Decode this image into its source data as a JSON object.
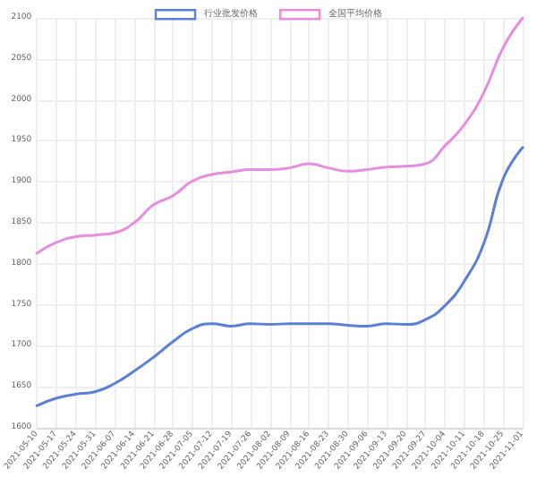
{
  "chart_data": {
    "type": "line",
    "categories": [
      "2021-05-10",
      "2021-05-17",
      "2021-05-24",
      "2021-05-31",
      "2021-06-07",
      "2021-06-14",
      "2021-06-21",
      "2021-06-28",
      "2021-07-05",
      "2021-07-12",
      "2021-07-19",
      "2021-07-26",
      "2021-08-02",
      "2021-08-09",
      "2021-08-16",
      "2021-08-23",
      "2021-08-30",
      "2021-09-06",
      "2021-09-13",
      "2021-09-20",
      "2021-09-27",
      "2021-10-04",
      "2021-10-11",
      "2021-10-18",
      "2021-10-25",
      "2021-11-01"
    ],
    "series": [
      {
        "name": "行业批发价格",
        "color": "#5b7fd6",
        "values": [
          1627,
          1636,
          1641,
          1644,
          1654,
          1669,
          1686,
          1705,
          1721,
          1727,
          1724,
          1727,
          1726,
          1727,
          1727,
          1727,
          1725,
          1724,
          1727,
          1726,
          1732,
          1749,
          1779,
          1825,
          1904,
          1942
        ]
      },
      {
        "name": "全国平均价格",
        "color": "#e58ee0",
        "values": [
          1813,
          1826,
          1833,
          1835,
          1838,
          1850,
          1872,
          1883,
          1901,
          1909,
          1912,
          1915,
          1915,
          1917,
          1922,
          1917,
          1913,
          1915,
          1918,
          1919,
          1922,
          1944,
          1970,
          2009,
          2064,
          2100
        ]
      }
    ],
    "ylim": [
      1600,
      2100
    ],
    "yticks": [
      1600,
      1650,
      1700,
      1750,
      1800,
      1850,
      1900,
      1950,
      2000,
      2050,
      2100
    ],
    "grid": true,
    "legend": "top",
    "marker": "none",
    "line_style": "solid"
  }
}
